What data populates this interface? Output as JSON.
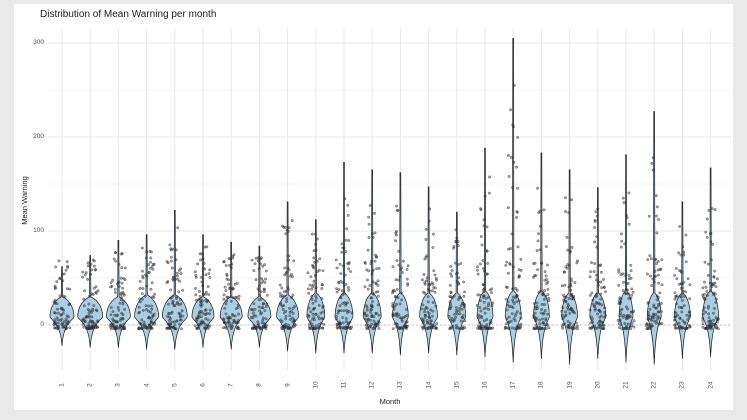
{
  "chart_data": {
    "type": "violin",
    "title": "Distribution of Mean Warning per month",
    "xlabel": "Month",
    "ylabel": "Mean Warning",
    "x_tick_labels": [
      "1",
      "2",
      "3",
      "4",
      "5",
      "6",
      "7",
      "8",
      "9",
      "10",
      "11",
      "12",
      "13",
      "14",
      "15",
      "16",
      "17",
      "18",
      "19",
      "20",
      "21",
      "22",
      "23",
      "24"
    ],
    "y_major_ticks": [
      0,
      100,
      200,
      300
    ],
    "y_tick_labels": [
      "0",
      "100",
      "200",
      "300"
    ],
    "y_minor_ticks": [
      50,
      150,
      250
    ],
    "ylim": [
      -48,
      316
    ],
    "grid": "on",
    "legend": "none",
    "overlay": "jittered points over violins, red dashed reference line at y=0",
    "months": [
      {
        "label": "1",
        "max": 62,
        "high_max": 0,
        "tip": -22,
        "bulge_hw": 12,
        "bulge_top": 30,
        "counts": {
          "low": 55,
          "mid": 20,
          "high": 0
        },
        "outliers": []
      },
      {
        "label": "2",
        "max": 74,
        "high_max": 62,
        "tip": -24,
        "bulge_hw": 12.5,
        "bulge_top": 30,
        "counts": {
          "low": 58,
          "mid": 22,
          "high": 2
        },
        "outliers": []
      },
      {
        "label": "3",
        "max": 90,
        "high_max": 78,
        "tip": -24,
        "bulge_hw": 12,
        "bulge_top": 30,
        "counts": {
          "low": 55,
          "mid": 24,
          "high": 5
        },
        "outliers": []
      },
      {
        "label": "4",
        "max": 96,
        "high_max": 84,
        "tip": -26,
        "bulge_hw": 12,
        "bulge_top": 32,
        "counts": {
          "low": 55,
          "mid": 24,
          "high": 6
        },
        "outliers": []
      },
      {
        "label": "5",
        "max": 122,
        "high_max": 105,
        "tip": -26,
        "bulge_hw": 12.5,
        "bulge_top": 32,
        "counts": {
          "low": 55,
          "mid": 24,
          "high": 7
        },
        "outliers": []
      },
      {
        "label": "6",
        "max": 96,
        "high_max": 84,
        "tip": -24,
        "bulge_hw": 11,
        "bulge_top": 30,
        "counts": {
          "low": 55,
          "mid": 24,
          "high": 5
        },
        "outliers": []
      },
      {
        "label": "7",
        "max": 88,
        "high_max": 76,
        "tip": -26,
        "bulge_hw": 11,
        "bulge_top": 30,
        "counts": {
          "low": 55,
          "mid": 22,
          "high": 5
        },
        "outliers": []
      },
      {
        "label": "8",
        "max": 84,
        "high_max": 72,
        "tip": -24,
        "bulge_hw": 11.5,
        "bulge_top": 30,
        "counts": {
          "low": 55,
          "mid": 24,
          "high": 4
        },
        "outliers": []
      },
      {
        "label": "9",
        "max": 131,
        "high_max": 112,
        "tip": -28,
        "bulge_hw": 11,
        "bulge_top": 32,
        "counts": {
          "low": 50,
          "mid": 22,
          "high": 9
        },
        "outliers": []
      },
      {
        "label": "10",
        "max": 112,
        "high_max": 98,
        "tip": -30,
        "bulge_hw": 9,
        "bulge_top": 34,
        "counts": {
          "low": 50,
          "mid": 24,
          "high": 8
        },
        "outliers": []
      },
      {
        "label": "11",
        "max": 173,
        "high_max": 140,
        "tip": -30,
        "bulge_hw": 9,
        "bulge_top": 34,
        "counts": {
          "low": 50,
          "mid": 24,
          "high": 11
        },
        "outliers": []
      },
      {
        "label": "12",
        "max": 165,
        "high_max": 130,
        "tip": -30,
        "bulge_hw": 9,
        "bulge_top": 34,
        "counts": {
          "low": 50,
          "mid": 26,
          "high": 12
        },
        "outliers": []
      },
      {
        "label": "13",
        "max": 162,
        "high_max": 128,
        "tip": -32,
        "bulge_hw": 8,
        "bulge_top": 34,
        "counts": {
          "low": 50,
          "mid": 22,
          "high": 8
        },
        "outliers": []
      },
      {
        "label": "14",
        "max": 147,
        "high_max": 125,
        "tip": -30,
        "bulge_hw": 9,
        "bulge_top": 34,
        "counts": {
          "low": 50,
          "mid": 24,
          "high": 9
        },
        "outliers": []
      },
      {
        "label": "15",
        "max": 120,
        "high_max": 105,
        "tip": -32,
        "bulge_hw": 9,
        "bulge_top": 34,
        "counts": {
          "low": 50,
          "mid": 22,
          "high": 8
        },
        "outliers": []
      },
      {
        "label": "16",
        "max": 188,
        "high_max": 160,
        "tip": -34,
        "bulge_hw": 8,
        "bulge_top": 36,
        "counts": {
          "low": 50,
          "mid": 22,
          "high": 12
        },
        "outliers": []
      },
      {
        "label": "17",
        "max": 305,
        "high_max": 200,
        "tip": -40,
        "bulge_hw": 8,
        "bulge_top": 36,
        "counts": {
          "low": 45,
          "mid": 20,
          "high": 16
        },
        "outliers": [
          211,
          213,
          229,
          255
        ]
      },
      {
        "label": "18",
        "max": 183,
        "high_max": 150,
        "tip": -36,
        "bulge_hw": 8,
        "bulge_top": 36,
        "counts": {
          "low": 50,
          "mid": 24,
          "high": 10
        },
        "outliers": []
      },
      {
        "label": "19",
        "max": 165,
        "high_max": 140,
        "tip": -42,
        "bulge_hw": 8,
        "bulge_top": 34,
        "counts": {
          "low": 50,
          "mid": 22,
          "high": 9
        },
        "outliers": []
      },
      {
        "label": "20",
        "max": 146,
        "high_max": 125,
        "tip": -36,
        "bulge_hw": 8,
        "bulge_top": 34,
        "counts": {
          "low": 50,
          "mid": 24,
          "high": 9
        },
        "outliers": []
      },
      {
        "label": "21",
        "max": 181,
        "high_max": 150,
        "tip": -40,
        "bulge_hw": 7,
        "bulge_top": 36,
        "counts": {
          "low": 50,
          "mid": 24,
          "high": 10
        },
        "outliers": []
      },
      {
        "label": "22",
        "max": 227,
        "high_max": 150,
        "tip": -42,
        "bulge_hw": 7,
        "bulge_top": 34,
        "counts": {
          "low": 50,
          "mid": 22,
          "high": 8
        },
        "outliers": [
          165,
          172,
          178
        ]
      },
      {
        "label": "23",
        "max": 131,
        "high_max": 110,
        "tip": -36,
        "bulge_hw": 8,
        "bulge_top": 34,
        "counts": {
          "low": 50,
          "mid": 22,
          "high": 7
        },
        "outliers": []
      },
      {
        "label": "24",
        "max": 167,
        "high_max": 140,
        "tip": -34,
        "bulge_hw": 8,
        "bulge_top": 36,
        "counts": {
          "low": 52,
          "mid": 26,
          "high": 10
        },
        "outliers": []
      }
    ],
    "style": {
      "violin_fill": "#a9cfe5",
      "violin_stroke": "#1a1a1a",
      "point_color": "#2e2e2e",
      "zero_line_color": "#e08080",
      "grid_major_color": "#e9e9e9",
      "grid_minor_color": "#f4f4f4",
      "panel_bg": "#ffffff",
      "figure_bg": "#ffffff",
      "outer_bg": "#e9e9e9"
    }
  }
}
